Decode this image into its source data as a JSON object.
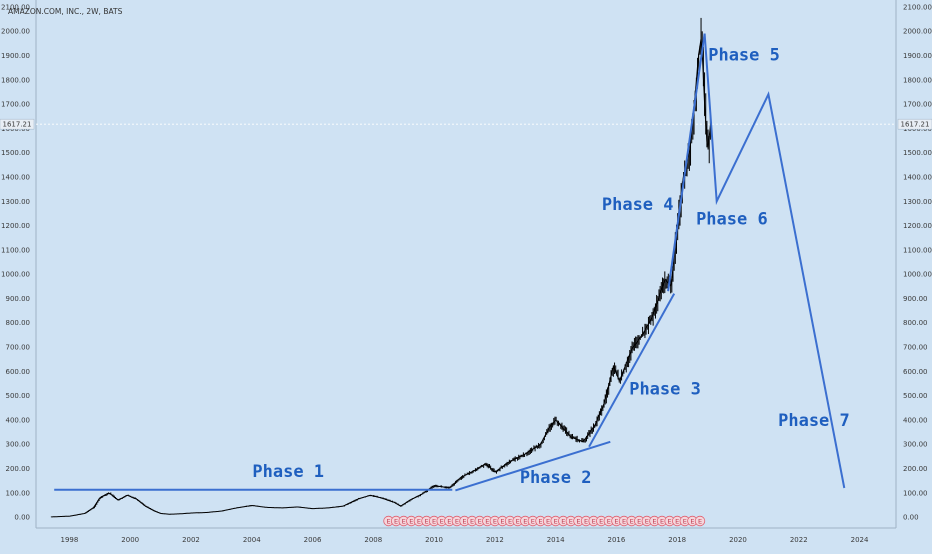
{
  "header": {
    "title": "AMAZON.COM, INC., 2W, BATS"
  },
  "price_marker": "1617.21",
  "colors": {
    "background": "#cfe2f3",
    "candles": "#000000",
    "phase_lines": "#3b6fd0",
    "phase_labels": "#1f5fbf",
    "earnings_markers": "#e06070"
  },
  "chart_data": {
    "type": "line",
    "title": "AMAZON.COM, INC., 2W, BATS",
    "xlabel": "",
    "ylabel": "",
    "xlim": [
      1996.9,
      2025.2
    ],
    "ylim": [
      -20,
      2120
    ],
    "y_ticks": [
      "0.00",
      "100.00",
      "200.00",
      "300.00",
      "400.00",
      "500.00",
      "600.00",
      "700.00",
      "800.00",
      "900.00",
      "1000.00",
      "1100.00",
      "1200.00",
      "1300.00",
      "1400.00",
      "1500.00",
      "1600.00",
      "1700.00",
      "1800.00",
      "1900.00",
      "2000.00",
      "2100.00"
    ],
    "x_ticks": [
      "1998",
      "2000",
      "2002",
      "2004",
      "2006",
      "2008",
      "2010",
      "2012",
      "2014",
      "2016",
      "2018",
      "2020",
      "2022",
      "2024"
    ],
    "grid": false,
    "price_series": {
      "name": "",
      "x": [
        1997.4,
        1998.0,
        1998.5,
        1998.8,
        1999.0,
        1999.3,
        1999.6,
        1999.9,
        2000.2,
        2000.5,
        2000.8,
        2001.0,
        2001.3,
        2001.7,
        2002.0,
        2002.5,
        2003.0,
        2003.5,
        2004.0,
        2004.5,
        2005.0,
        2005.5,
        2006.0,
        2006.5,
        2007.0,
        2007.5,
        2007.9,
        2008.3,
        2008.7,
        2008.9,
        2009.2,
        2009.6,
        2010.0,
        2010.5,
        2010.9,
        2011.3,
        2011.7,
        2012.0,
        2012.5,
        2013.0,
        2013.5,
        2013.8,
        2014.0,
        2014.5,
        2014.9,
        2015.3,
        2015.6,
        2015.9,
        2016.1,
        2016.5,
        2016.9,
        2017.2,
        2017.6,
        2017.8,
        2018.0,
        2018.2,
        2018.4,
        2018.6,
        2018.7,
        2018.8,
        2018.9,
        2019.0,
        2019.1
      ],
      "y": [
        1,
        4,
        15,
        40,
        80,
        100,
        70,
        90,
        75,
        45,
        25,
        15,
        12,
        14,
        17,
        19,
        25,
        38,
        48,
        40,
        38,
        42,
        35,
        38,
        45,
        75,
        90,
        78,
        60,
        45,
        70,
        95,
        130,
        120,
        165,
        190,
        220,
        185,
        230,
        260,
        300,
        370,
        400,
        330,
        310,
        380,
        470,
        620,
        560,
        690,
        760,
        830,
        980,
        950,
        1200,
        1400,
        1500,
        1750,
        1900,
        1980,
        1700,
        1500,
        1620
      ]
    },
    "phase_lines": [
      {
        "name": "Phase 1",
        "x": [
          1997.5,
          2010.6
        ],
        "y": [
          113,
          113
        ]
      },
      {
        "name": "Phase 2",
        "x": [
          2010.7,
          2015.8
        ],
        "y": [
          110,
          310
        ]
      },
      {
        "name": "Phase 3",
        "x": [
          2015.1,
          2017.9
        ],
        "y": [
          290,
          920
        ]
      },
      {
        "name": "Phase 4",
        "x": [
          2017.7,
          2018.9
        ],
        "y": [
          930,
          1990
        ]
      },
      {
        "name": "Phase 5-7",
        "x": [
          2018.9,
          2019.3,
          2021.0,
          2023.5
        ],
        "y": [
          1990,
          1300,
          1740,
          120
        ]
      }
    ],
    "annotations": [
      {
        "text": "Phase 1",
        "x": 2005.2,
        "y": 165
      },
      {
        "text": "Phase 2",
        "x": 2014.0,
        "y": 140
      },
      {
        "text": "Phase 3",
        "x": 2017.6,
        "y": 505
      },
      {
        "text": "Phase 4",
        "x": 2016.7,
        "y": 1265
      },
      {
        "text": "Phase 5",
        "x": 2020.2,
        "y": 1880
      },
      {
        "text": "Phase 6",
        "x": 2019.8,
        "y": 1205
      },
      {
        "text": "Phase 7",
        "x": 2022.5,
        "y": 375
      }
    ],
    "earnings_markers": {
      "label": "E",
      "x": [
        2008.5,
        2008.75,
        2009.0,
        2009.25,
        2009.5,
        2009.75,
        2010.0,
        2010.25,
        2010.5,
        2010.75,
        2011.0,
        2011.25,
        2011.5,
        2011.75,
        2012.0,
        2012.25,
        2012.5,
        2012.75,
        2013.0,
        2013.25,
        2013.5,
        2013.75,
        2014.0,
        2014.25,
        2014.5,
        2014.75,
        2015.0,
        2015.25,
        2015.5,
        2015.75,
        2016.0,
        2016.25,
        2016.5,
        2016.75,
        2017.0,
        2017.25,
        2017.5,
        2017.75,
        2018.0,
        2018.25,
        2018.5,
        2018.75
      ]
    }
  }
}
